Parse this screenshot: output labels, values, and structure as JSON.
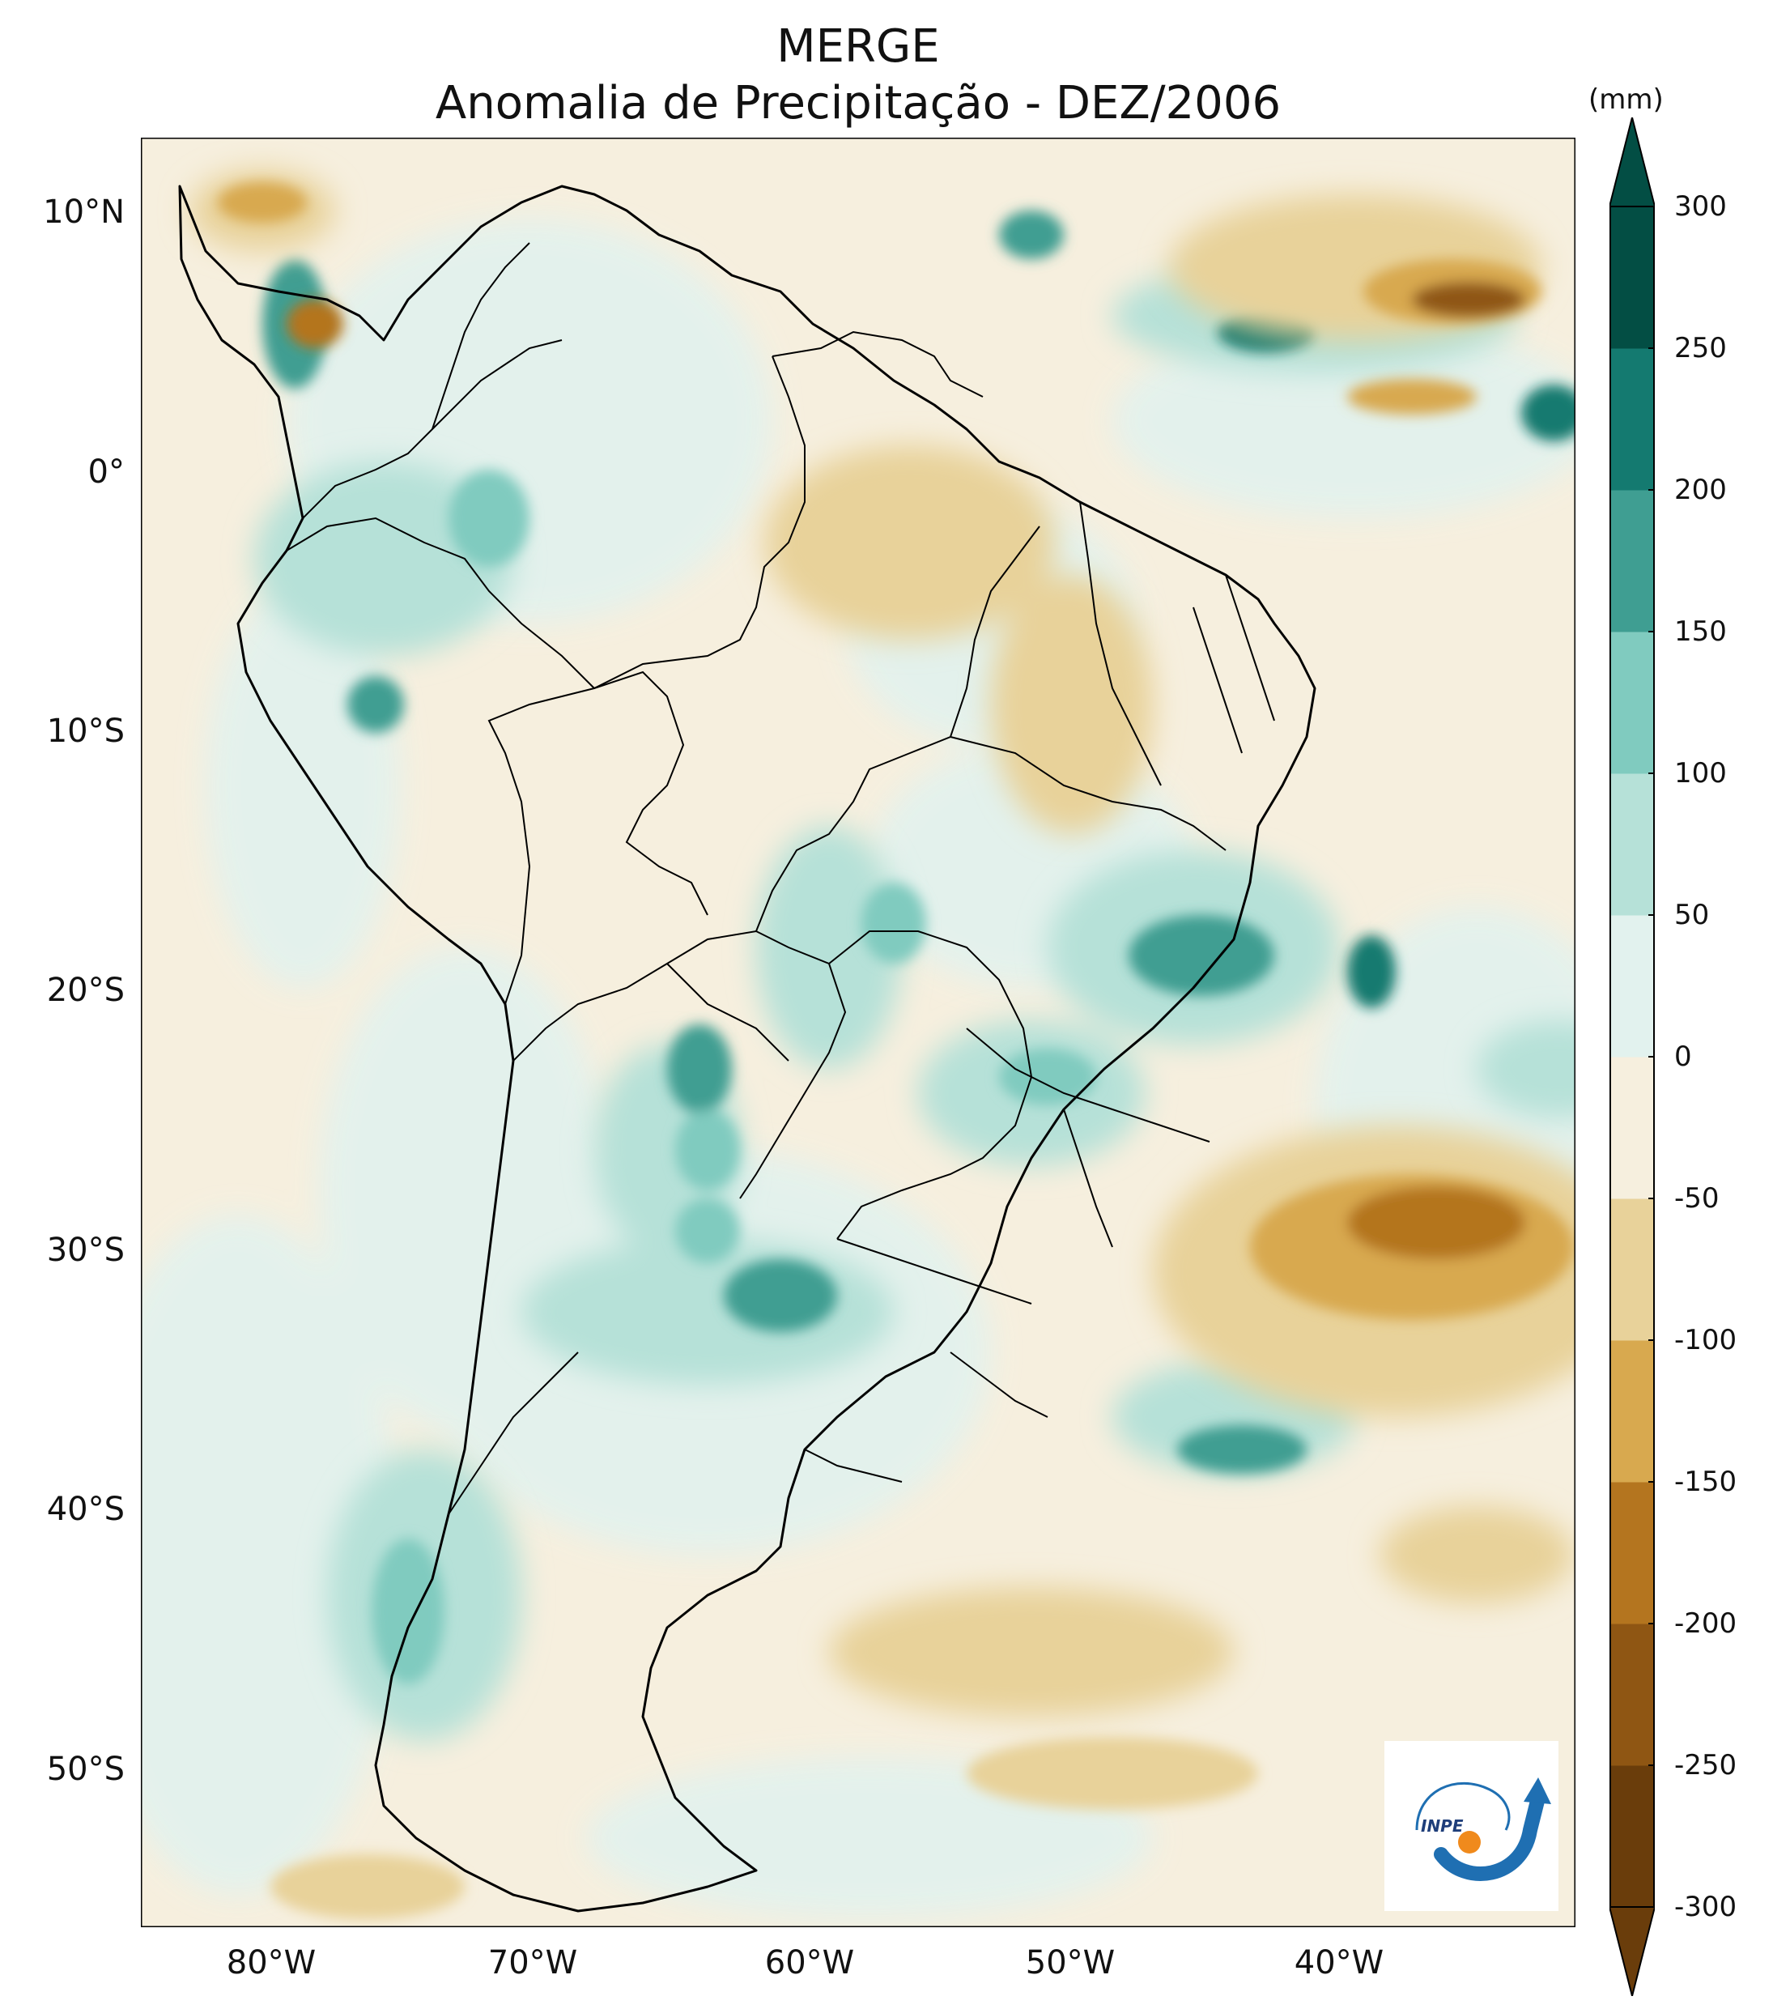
{
  "title": "MERGE",
  "subtitle": "Anomalia de Precipitação - DEZ/2006",
  "colorbar": {
    "unit": "(mm)",
    "ticks": [
      "300",
      "250",
      "200",
      "150",
      "100",
      "50",
      "0",
      "-50",
      "-100",
      "-150",
      "-200",
      "-250",
      "-300"
    ],
    "levels": [
      -300,
      -250,
      -200,
      -150,
      -100,
      -50,
      0,
      50,
      100,
      150,
      200,
      250,
      300
    ],
    "colors": [
      "#6a3d0b",
      "#8f5613",
      "#b4751f",
      "#d8a94f",
      "#e8d29a",
      "#f6efde",
      "#e2f2ee",
      "#b6e1d8",
      "#80cbbf",
      "#3f9e92",
      "#147a70",
      "#034e44"
    ],
    "extend": "both"
  },
  "axes": {
    "lat_labels": [
      "10°N",
      "0°",
      "10°S",
      "20°S",
      "30°S",
      "40°S",
      "50°S"
    ],
    "lat_values": [
      10,
      0,
      -10,
      -20,
      -30,
      -40,
      -50
    ],
    "lon_labels": [
      "80°W",
      "70°W",
      "60°W",
      "50°W",
      "40°W"
    ],
    "lon_values": [
      -80,
      -70,
      -60,
      -50,
      -40
    ],
    "lon_range": [
      -85,
      -30
    ],
    "lat_range": [
      -56,
      13
    ]
  },
  "logo_text": "INPE",
  "colors": {
    "ocean_base": "#f6efde",
    "coast": "#000000",
    "wet": "#147a70",
    "dry": "#b4751f"
  }
}
